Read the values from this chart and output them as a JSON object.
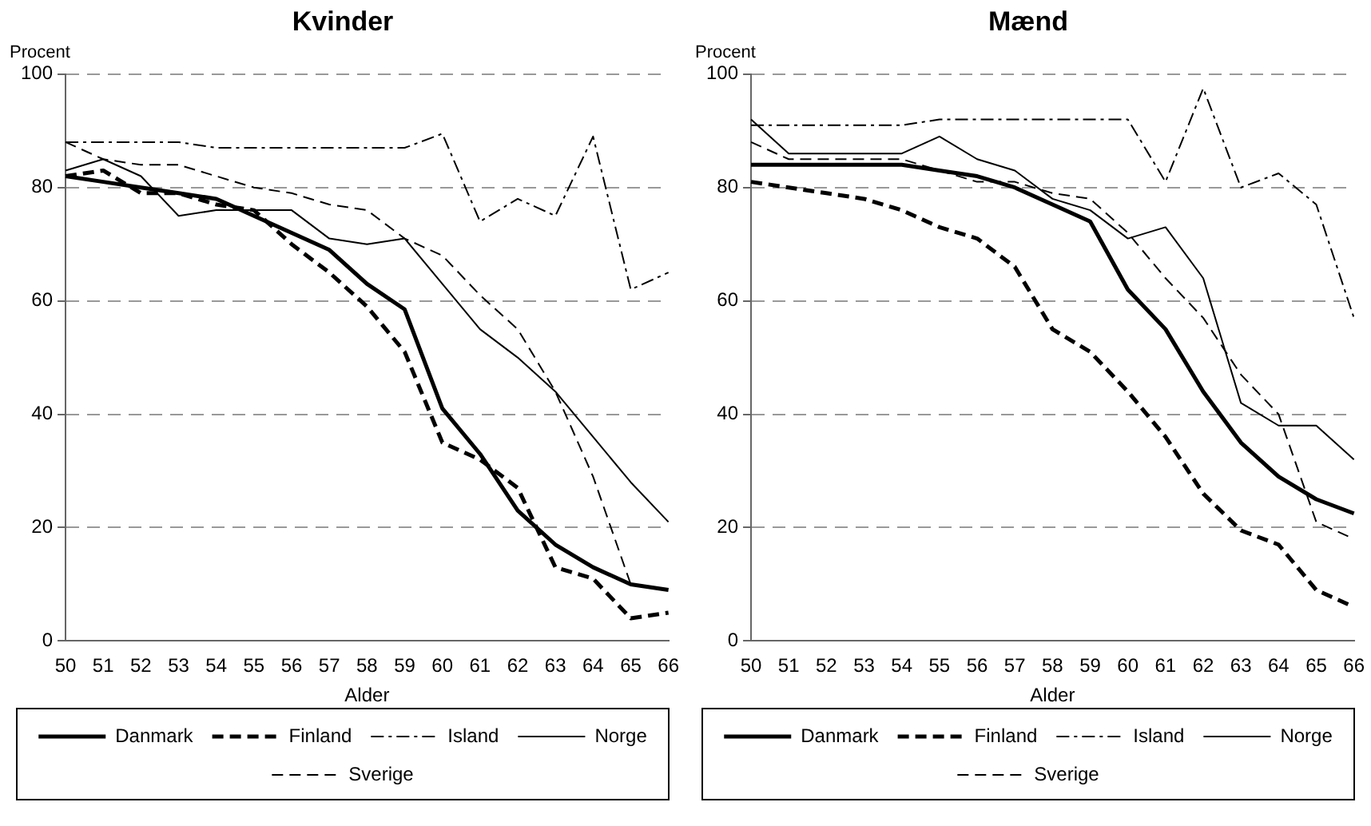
{
  "chart_data": [
    {
      "type": "line",
      "title": "Kvinder",
      "ylabel": "Procent",
      "xlabel": "Alder",
      "categories": [
        "50",
        "51",
        "52",
        "53",
        "54",
        "55",
        "56",
        "57",
        "58",
        "59",
        "60",
        "61",
        "62",
        "63",
        "64",
        "65",
        "66"
      ],
      "ylim": [
        0,
        100
      ],
      "yticks": [
        0,
        20,
        40,
        60,
        80,
        100
      ],
      "grid": "y",
      "legend": "bottom",
      "marker": "none",
      "series": [
        {
          "name": "Danmark",
          "color": "#000000",
          "line_style": "solid",
          "values": [
            82,
            81,
            80,
            79,
            78,
            75,
            72,
            69,
            63,
            58.5,
            41,
            33,
            23,
            17,
            13,
            10,
            9
          ]
        },
        {
          "name": "Finland",
          "color": "#000000",
          "line_style": "dashed",
          "values": [
            82,
            83,
            79,
            79,
            77,
            76,
            70,
            65,
            59,
            51,
            35,
            32,
            27,
            13,
            11,
            4,
            5
          ]
        },
        {
          "name": "Island",
          "color": "#000000",
          "line_style": "dashdot",
          "values": [
            88,
            88,
            88,
            88,
            87,
            87,
            87,
            87,
            87,
            87,
            89.5,
            74,
            78,
            75,
            89,
            62,
            65
          ]
        },
        {
          "name": "Norge",
          "color": "#000000",
          "line_style": "solid",
          "values": [
            83,
            85,
            82,
            75,
            76,
            76,
            76,
            71,
            70,
            71,
            63,
            55,
            50,
            44,
            36,
            28,
            21
          ]
        },
        {
          "name": "Sverige",
          "color": "#000000",
          "line_style": "dashed",
          "values": [
            88,
            85,
            84,
            84,
            82,
            80,
            79,
            77,
            76,
            71,
            68,
            61,
            55,
            44,
            29,
            10,
            9
          ]
        }
      ]
    },
    {
      "type": "line",
      "title": "Mænd",
      "ylabel": "Procent",
      "xlabel": "Alder",
      "categories": [
        "50",
        "51",
        "52",
        "53",
        "54",
        "55",
        "56",
        "57",
        "58",
        "59",
        "60",
        "61",
        "62",
        "63",
        "64",
        "65",
        "66"
      ],
      "ylim": [
        0,
        100
      ],
      "yticks": [
        0,
        20,
        40,
        60,
        80,
        100
      ],
      "grid": "y",
      "legend": "bottom",
      "marker": "none",
      "series": [
        {
          "name": "Danmark",
          "color": "#000000",
          "line_style": "solid",
          "values": [
            84,
            84,
            84,
            84,
            84,
            83,
            82,
            80,
            77,
            74,
            62,
            55,
            44,
            35,
            29,
            25,
            22.5
          ]
        },
        {
          "name": "Finland",
          "color": "#000000",
          "line_style": "dashed",
          "values": [
            81,
            80,
            79,
            78,
            76,
            73,
            71,
            66,
            55,
            51,
            44,
            36,
            26,
            19.5,
            17,
            9,
            6
          ]
        },
        {
          "name": "Island",
          "color": "#000000",
          "line_style": "dashdot",
          "values": [
            91,
            91,
            91,
            91,
            91,
            92,
            92,
            92,
            92,
            92,
            92,
            81,
            97.5,
            80,
            82.5,
            77,
            57
          ]
        },
        {
          "name": "Norge",
          "color": "#000000",
          "line_style": "solid",
          "values": [
            92,
            86,
            86,
            86,
            86,
            89,
            85,
            83,
            78,
            76,
            71,
            73,
            64,
            42,
            38,
            38,
            32
          ]
        },
        {
          "name": "Sverige",
          "color": "#000000",
          "line_style": "dashed",
          "values": [
            88,
            85,
            85,
            85,
            85,
            83,
            81,
            81,
            79,
            78,
            72,
            64,
            57,
            47,
            40,
            21,
            18
          ]
        }
      ]
    }
  ]
}
